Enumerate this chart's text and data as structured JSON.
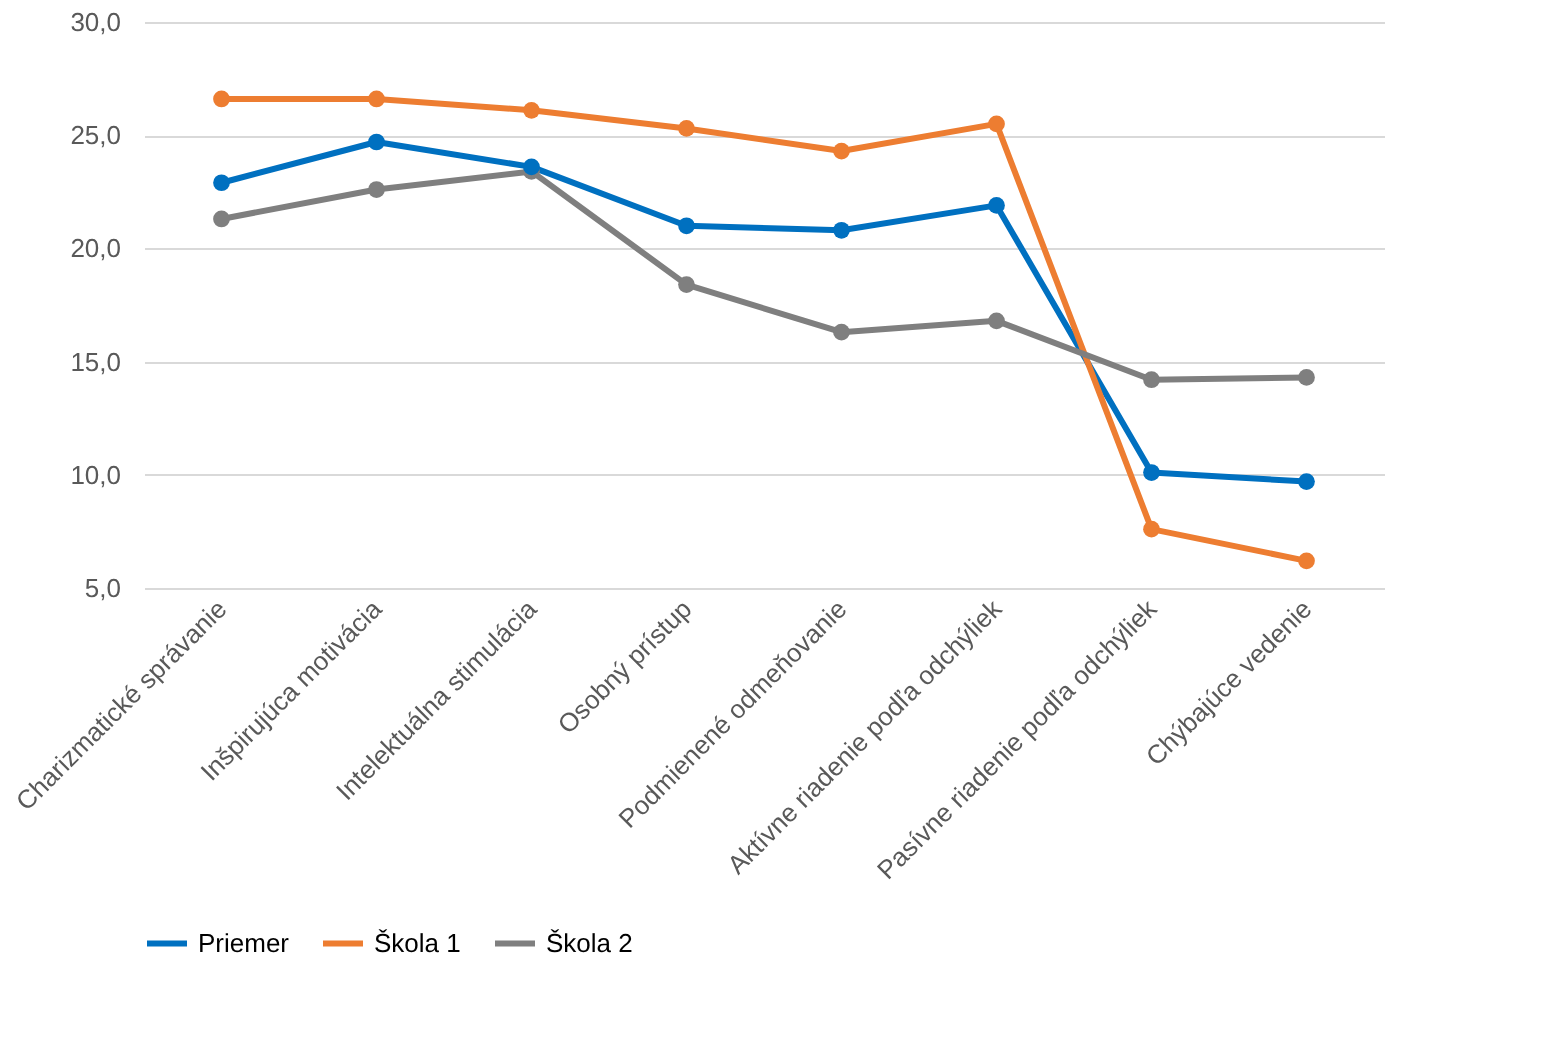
{
  "chart_data": {
    "type": "line",
    "categories": [
      "Charizmatické správanie",
      "Inšpirujúca motivácia",
      "Intelektuálna stimulácia",
      "Osobný prístup",
      "Podmienené odmeňovanie",
      "Aktívne riadenie podľa odchýliek",
      "Pasívne riadenie podľa odchýliek",
      "Chýbajúce vedenie"
    ],
    "series": [
      {
        "name": "Priemer",
        "color": "#0070c0",
        "values": [
          22.9,
          24.7,
          23.6,
          21.0,
          20.8,
          21.9,
          10.1,
          9.7
        ]
      },
      {
        "name": "Škola 1",
        "color": "#ed7d31",
        "values": [
          26.6,
          26.6,
          26.1,
          25.3,
          24.3,
          25.5,
          7.6,
          6.2
        ]
      },
      {
        "name": "Škola 2",
        "color": "#7f7f7f",
        "values": [
          21.3,
          22.6,
          23.4,
          18.4,
          16.3,
          16.8,
          14.2,
          14.3
        ]
      }
    ],
    "ylim": [
      5,
      30
    ],
    "yticks": [
      {
        "value": 5,
        "label": "5,0"
      },
      {
        "value": 10,
        "label": "10,0"
      },
      {
        "value": 15,
        "label": "15,0"
      },
      {
        "value": 20,
        "label": "20,0"
      },
      {
        "value": 25,
        "label": "25,0"
      },
      {
        "value": 30,
        "label": "30,0"
      }
    ],
    "grid": "y",
    "legend": "bottom",
    "marker": "circle",
    "line_style": "solid"
  }
}
